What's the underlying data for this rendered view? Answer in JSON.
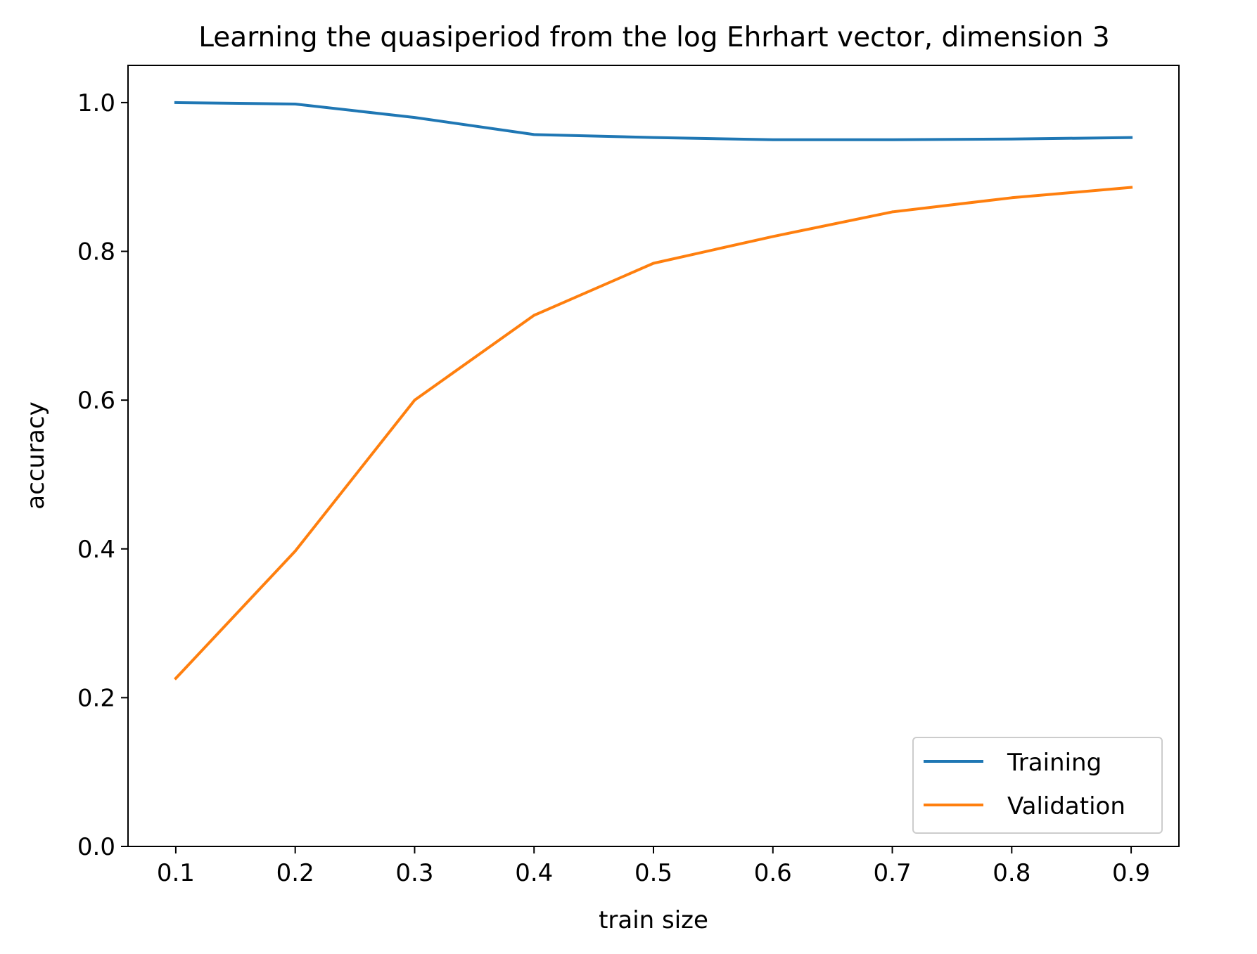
{
  "chart_data": {
    "type": "line",
    "title": "Learning the quasiperiod from the log Ehrhart vector, dimension 3",
    "xlabel": "train size",
    "ylabel": "accuracy",
    "xlim": [
      0.06,
      0.94
    ],
    "ylim": [
      0.0,
      1.05
    ],
    "xticks": [
      "0.1",
      "0.2",
      "0.3",
      "0.4",
      "0.5",
      "0.6",
      "0.7",
      "0.8",
      "0.9"
    ],
    "yticks": [
      "0.0",
      "0.2",
      "0.4",
      "0.6",
      "0.8",
      "1.0"
    ],
    "x": [
      0.1,
      0.2,
      0.3,
      0.4,
      0.5,
      0.6,
      0.7,
      0.8,
      0.9
    ],
    "series": [
      {
        "name": "Training",
        "color": "#1f77b4",
        "values": [
          1.0,
          0.998,
          0.98,
          0.957,
          0.953,
          0.95,
          0.95,
          0.951,
          0.953
        ]
      },
      {
        "name": "Validation",
        "color": "#ff7f0e",
        "values": [
          0.226,
          0.397,
          0.6,
          0.714,
          0.784,
          0.82,
          0.853,
          0.872,
          0.886
        ]
      }
    ],
    "grid": false,
    "legend_position": "lower-right"
  }
}
